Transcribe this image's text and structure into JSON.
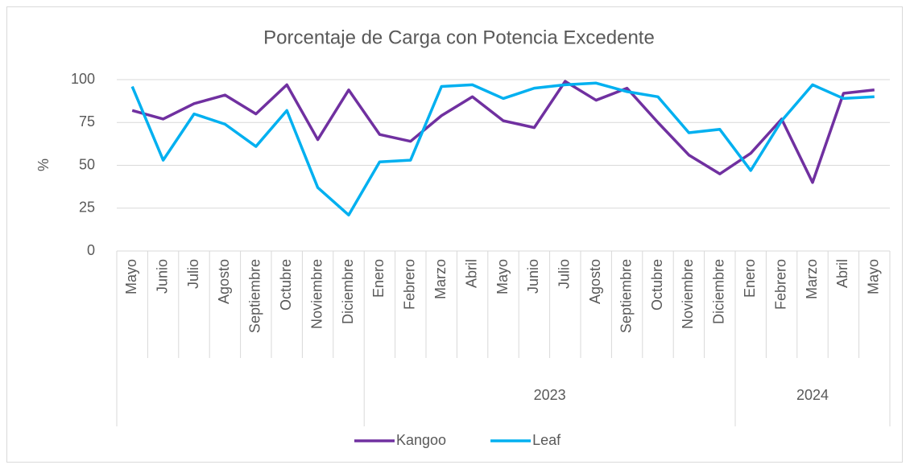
{
  "chart_data": {
    "type": "line",
    "title": "Porcentaje de Carga con Potencia Excedente",
    "y_label": "%",
    "groups": [
      {
        "label": null,
        "categories": [
          "Mayo",
          "Junio",
          "Julio",
          "Agosto",
          "Septiembre",
          "Octubre",
          "Noviembre",
          "Diciembre"
        ]
      },
      {
        "label": "2023",
        "categories": [
          "Enero",
          "Febrero",
          "Marzo",
          "Abril",
          "Mayo",
          "Junio",
          "Julio",
          "Agosto",
          "Septiembre",
          "Octubre",
          "Noviembre",
          "Diciembre"
        ]
      },
      {
        "label": "2024",
        "categories": [
          "Enero",
          "Febrero",
          "Marzo",
          "Abril",
          "Mayo"
        ]
      }
    ],
    "series": [
      {
        "name": "Kangoo",
        "color": "#7030a0",
        "values": [
          82,
          77,
          86,
          91,
          80,
          97,
          65,
          94,
          68,
          64,
          79,
          90,
          76,
          72,
          99,
          88,
          95,
          75,
          56,
          45,
          57,
          77,
          40,
          92,
          94
        ]
      },
      {
        "name": "Leaf",
        "color": "#00b0f0",
        "values": [
          96,
          53,
          80,
          74,
          61,
          82,
          37,
          21,
          52,
          53,
          96,
          97,
          89,
          95,
          97,
          98,
          93,
          90,
          69,
          71,
          47,
          76,
          97,
          89,
          90
        ]
      }
    ],
    "ylim": [
      0,
      100
    ],
    "yticks": [
      0,
      25,
      50,
      75,
      100
    ],
    "grid": true,
    "legend": "bottom"
  }
}
